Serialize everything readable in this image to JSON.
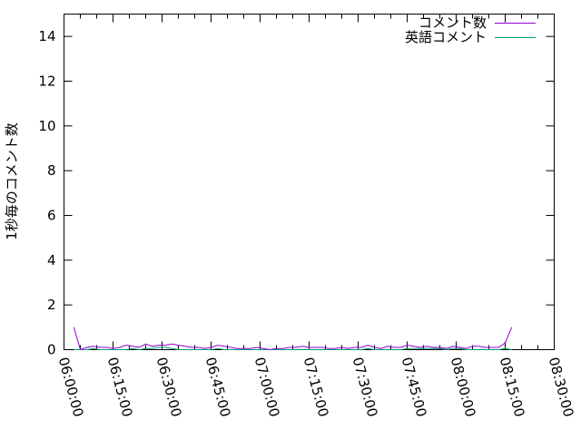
{
  "chart_data": {
    "type": "line",
    "title": "",
    "xlabel": "",
    "ylabel": "1秒毎のコメント数",
    "xlim": [
      "06:00:00",
      "08:30:00"
    ],
    "ylim": [
      0,
      15
    ],
    "xticks": [
      "06:00:00",
      "06:15:00",
      "06:30:00",
      "06:45:00",
      "07:00:00",
      "07:15:00",
      "07:30:00",
      "07:45:00",
      "08:00:00",
      "08:15:00",
      "08:30:00"
    ],
    "yticks": [
      "0",
      "2",
      "4",
      "6",
      "8",
      "10",
      "12",
      "14"
    ],
    "grid": false,
    "legend_position": "top-right",
    "x": [
      "06:03",
      "06:05",
      "06:07",
      "06:09",
      "06:11",
      "06:13",
      "06:15",
      "06:17",
      "06:19",
      "06:21",
      "06:23",
      "06:25",
      "06:27",
      "06:29",
      "06:31",
      "06:33",
      "06:35",
      "06:37",
      "06:39",
      "06:41",
      "06:43",
      "06:45",
      "06:47",
      "06:49",
      "06:51",
      "06:53",
      "06:55",
      "06:57",
      "06:59",
      "07:01",
      "07:03",
      "07:05",
      "07:07",
      "07:09",
      "07:11",
      "07:13",
      "07:15",
      "07:17",
      "07:19",
      "07:21",
      "07:23",
      "07:25",
      "07:27",
      "07:29",
      "07:31",
      "07:33",
      "07:35",
      "07:37",
      "07:39",
      "07:41",
      "07:43",
      "07:45",
      "07:47",
      "07:49",
      "07:51",
      "07:53",
      "07:55",
      "07:57",
      "07:59",
      "08:01",
      "08:03",
      "08:05",
      "08:07",
      "08:09",
      "08:11",
      "08:13",
      "08:15",
      "08:17"
    ],
    "series": [
      {
        "name": "コメント数",
        "color": "#9400d3",
        "values": [
          1.0,
          0.0,
          0.1,
          0.15,
          0.1,
          0.1,
          0.05,
          0.1,
          0.2,
          0.15,
          0.1,
          0.25,
          0.15,
          0.2,
          0.2,
          0.25,
          0.2,
          0.15,
          0.1,
          0.1,
          0.05,
          0.1,
          0.2,
          0.15,
          0.1,
          0.05,
          0.05,
          0.05,
          0.1,
          0.05,
          0.0,
          0.05,
          0.05,
          0.1,
          0.1,
          0.15,
          0.1,
          0.1,
          0.1,
          0.05,
          0.05,
          0.1,
          0.05,
          0.1,
          0.1,
          0.2,
          0.1,
          0.05,
          0.15,
          0.1,
          0.1,
          0.2,
          0.15,
          0.1,
          0.15,
          0.1,
          0.1,
          0.05,
          0.15,
          0.1,
          0.05,
          0.15,
          0.15,
          0.1,
          0.1,
          0.1,
          0.3,
          1.0
        ]
      },
      {
        "name": "英語コメント",
        "color": "#009e73",
        "values": [
          0.0,
          0.0,
          0.0,
          0.05,
          0.0,
          0.0,
          0.0,
          0.0,
          0.0,
          0.05,
          0.0,
          0.05,
          0.05,
          0.1,
          0.1,
          0.05,
          0.0,
          0.0,
          0.0,
          0.0,
          0.0,
          0.0,
          0.05,
          0.0,
          0.0,
          0.0,
          0.0,
          0.0,
          0.0,
          0.0,
          0.0,
          0.0,
          0.0,
          0.0,
          0.0,
          0.0,
          0.0,
          0.0,
          0.0,
          0.0,
          0.0,
          0.0,
          0.0,
          0.0,
          0.0,
          0.05,
          0.0,
          0.0,
          0.0,
          0.0,
          0.0,
          0.05,
          0.05,
          0.05,
          0.05,
          0.05,
          0.05,
          0.0,
          0.05,
          0.05,
          0.0,
          0.0,
          0.0,
          0.0,
          0.0,
          0.0,
          0.05,
          0.0
        ]
      }
    ]
  }
}
